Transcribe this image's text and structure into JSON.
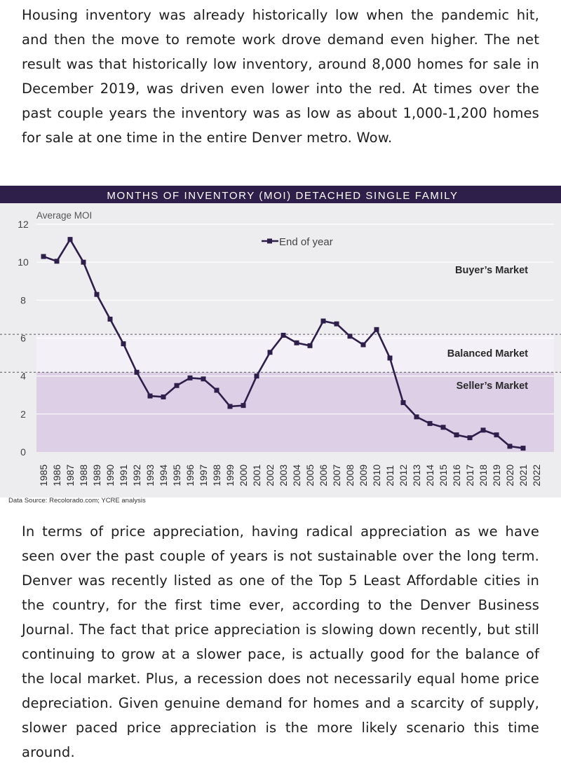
{
  "intro_paragraph": "Housing inventory was already historically low when the pandemic hit, and then the move to remote work drove demand even higher. The net result was that historically low inventory, around 8,000 homes for sale in December 2019, was driven even lower into the red. At times over the past couple years the inventory was as low as about 1,000-1,200 homes for sale at one time in the entire Denver metro. Wow.",
  "closing_paragraph": "In terms of price appreciation, having radical appreciation as we have seen over the past couple of years is not sustainable over the long term. Denver was recently listed as one of the Top 5 Least Affordable cities in the country, for the first time ever, according to the Denver Business Journal. The fact that price appreciation is slowing down recently, but still continuing to grow at a slower pace, is actually good for the balance of the local market. Plus, a recession does not necessarily equal home price depreciation. Given genuine demand for homes and a scarcity of supply, slower paced price appreciation is the more likely scenario this time around.",
  "data_source": "Data Source: Recolorado.com; YCRE analysis",
  "chart_data": {
    "type": "line",
    "title": "MONTHS OF INVENTORY (MOI) DETACHED SINGLE FAMILY",
    "ylabel": "Average MOI",
    "xlabel": "",
    "ylim": [
      0,
      12
    ],
    "yticks": [
      0,
      2,
      4,
      6,
      8,
      10,
      12
    ],
    "grid": true,
    "legend_position": "top-center",
    "categories": [
      "1985",
      "1986",
      "1987",
      "1988",
      "1989",
      "1990",
      "1991",
      "1992",
      "1993",
      "1994",
      "1995",
      "1996",
      "1997",
      "1998",
      "1999",
      "2000",
      "2001",
      "2002",
      "2003",
      "2004",
      "2005",
      "2006",
      "2007",
      "2008",
      "2009",
      "2010",
      "2011",
      "2012",
      "2013",
      "2014",
      "2015",
      "2016",
      "2017",
      "2018",
      "2019",
      "2020",
      "2021",
      "2022"
    ],
    "series": [
      {
        "name": "End of year",
        "color": "#2d1e4a",
        "values": [
          10.3,
          10.05,
          11.2,
          10.0,
          8.3,
          7.0,
          5.7,
          4.2,
          2.95,
          2.9,
          3.5,
          3.9,
          3.85,
          3.25,
          2.4,
          2.45,
          4.0,
          5.25,
          6.15,
          5.75,
          5.6,
          6.9,
          6.75,
          6.1,
          5.65,
          6.45,
          4.95,
          2.6,
          1.85,
          1.5,
          1.3,
          0.9,
          0.75,
          1.15,
          0.9,
          0.3,
          0.2,
          null
        ]
      }
    ],
    "zones": [
      {
        "label": "Buyer’s Market",
        "from": 6.2,
        "to": 12,
        "color": "#ededf0"
      },
      {
        "label": "Balanced Market",
        "from": 4.2,
        "to": 6.2,
        "color": "#f3f1f7"
      },
      {
        "label": "Seller’s Market",
        "from": 0,
        "to": 4.2,
        "color": "#dccfe6"
      }
    ],
    "header_color": "#2d1e4a"
  }
}
